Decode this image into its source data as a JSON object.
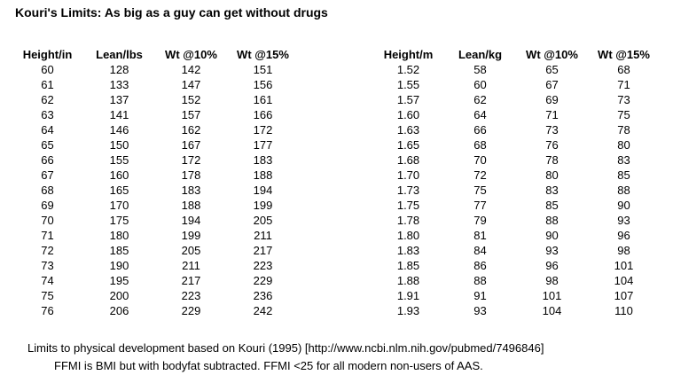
{
  "title": "Kouri's Limits: As big as a guy can get without drugs",
  "imperial_table": {
    "headers": [
      "Height/in",
      "Lean/lbs",
      "Wt @10%",
      "Wt @15%"
    ],
    "rows": [
      [
        "60",
        "128",
        "142",
        "151"
      ],
      [
        "61",
        "133",
        "147",
        "156"
      ],
      [
        "62",
        "137",
        "152",
        "161"
      ],
      [
        "63",
        "141",
        "157",
        "166"
      ],
      [
        "64",
        "146",
        "162",
        "172"
      ],
      [
        "65",
        "150",
        "167",
        "177"
      ],
      [
        "66",
        "155",
        "172",
        "183"
      ],
      [
        "67",
        "160",
        "178",
        "188"
      ],
      [
        "68",
        "165",
        "183",
        "194"
      ],
      [
        "69",
        "170",
        "188",
        "199"
      ],
      [
        "70",
        "175",
        "194",
        "205"
      ],
      [
        "71",
        "180",
        "199",
        "211"
      ],
      [
        "72",
        "185",
        "205",
        "217"
      ],
      [
        "73",
        "190",
        "211",
        "223"
      ],
      [
        "74",
        "195",
        "217",
        "229"
      ],
      [
        "75",
        "200",
        "223",
        "236"
      ],
      [
        "76",
        "206",
        "229",
        "242"
      ]
    ]
  },
  "metric_table": {
    "headers": [
      "Height/m",
      "Lean/kg",
      "Wt @10%",
      "Wt @15%"
    ],
    "rows": [
      [
        "1.52",
        "58",
        "65",
        "68"
      ],
      [
        "1.55",
        "60",
        "67",
        "71"
      ],
      [
        "1.57",
        "62",
        "69",
        "73"
      ],
      [
        "1.60",
        "64",
        "71",
        "75"
      ],
      [
        "1.63",
        "66",
        "73",
        "78"
      ],
      [
        "1.65",
        "68",
        "76",
        "80"
      ],
      [
        "1.68",
        "70",
        "78",
        "83"
      ],
      [
        "1.70",
        "72",
        "80",
        "85"
      ],
      [
        "1.73",
        "75",
        "83",
        "88"
      ],
      [
        "1.75",
        "77",
        "85",
        "90"
      ],
      [
        "1.78",
        "79",
        "88",
        "93"
      ],
      [
        "1.80",
        "81",
        "90",
        "96"
      ],
      [
        "1.83",
        "84",
        "93",
        "98"
      ],
      [
        "1.85",
        "86",
        "96",
        "101"
      ],
      [
        "1.88",
        "88",
        "98",
        "104"
      ],
      [
        "1.91",
        "91",
        "101",
        "107"
      ],
      [
        "1.93",
        "93",
        "104",
        "110"
      ]
    ]
  },
  "footnotes": [
    "Limits to physical development based on Kouri (1995) [http://www.ncbi.nlm.nih.gov/pubmed/7496846]",
    "FFMI is BMI but with bodyfat subtracted. FFMI <25 for all modern non-users of AAS."
  ]
}
